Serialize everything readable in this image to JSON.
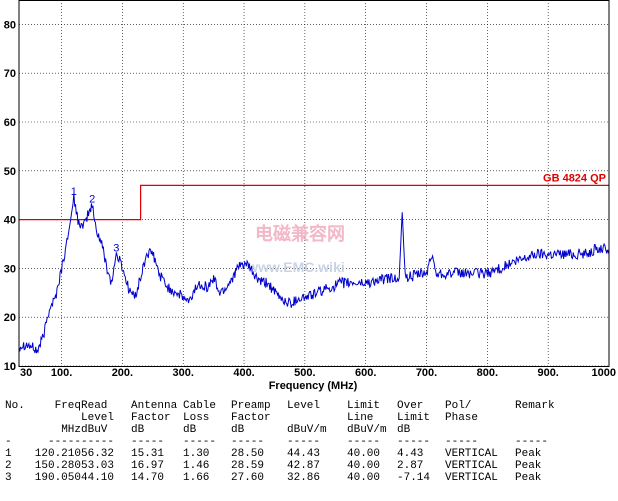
{
  "chart_data": {
    "type": "line",
    "title": "",
    "xlabel": "Frequency (MHz)",
    "ylabel": "",
    "xlim": [
      30,
      1000
    ],
    "ylim": [
      10,
      85
    ],
    "x_ticks": [
      30,
      100,
      200,
      300,
      400,
      500,
      600,
      700,
      800,
      900,
      1000
    ],
    "x_tick_labels": [
      "30",
      "100.",
      "200.",
      "300.",
      "400.",
      "500.",
      "600.",
      "700.",
      "800.",
      "900.",
      "1000"
    ],
    "y_ticks": [
      10,
      20,
      30,
      40,
      50,
      60,
      70,
      80
    ],
    "y_tick_labels": [
      "10",
      "20",
      "30",
      "40",
      "50",
      "60",
      "70",
      "80"
    ],
    "y_bottom_label": "0",
    "grid": true,
    "series": [
      {
        "color": "#0000cc",
        "points": [
          [
            30,
            14
          ],
          [
            40,
            14.5
          ],
          [
            50,
            14
          ],
          [
            60,
            13
          ],
          [
            70,
            16
          ],
          [
            80,
            22
          ],
          [
            90,
            24
          ],
          [
            100,
            30
          ],
          [
            110,
            36
          ],
          [
            120.21,
            44.43
          ],
          [
            127,
            40
          ],
          [
            135,
            38
          ],
          [
            143,
            41
          ],
          [
            150.28,
            42.87
          ],
          [
            157,
            38
          ],
          [
            166,
            35
          ],
          [
            175,
            30
          ],
          [
            182,
            27
          ],
          [
            190.05,
            32.86
          ],
          [
            198,
            31
          ],
          [
            210,
            26
          ],
          [
            220,
            24
          ],
          [
            230,
            28
          ],
          [
            240,
            33
          ],
          [
            250,
            33
          ],
          [
            260,
            29
          ],
          [
            275,
            26
          ],
          [
            290,
            25
          ],
          [
            300,
            24
          ],
          [
            310,
            23
          ],
          [
            320,
            26
          ],
          [
            330,
            27
          ],
          [
            340,
            26
          ],
          [
            350,
            28
          ],
          [
            360,
            25
          ],
          [
            370,
            26
          ],
          [
            380,
            28
          ],
          [
            390,
            30
          ],
          [
            400,
            31
          ],
          [
            410,
            30
          ],
          [
            420,
            28
          ],
          [
            430,
            27
          ],
          [
            440,
            27
          ],
          [
            450,
            25
          ],
          [
            460,
            24
          ],
          [
            470,
            23
          ],
          [
            480,
            23
          ],
          [
            490,
            24
          ],
          [
            500,
            24
          ],
          [
            520,
            25
          ],
          [
            540,
            26
          ],
          [
            560,
            27
          ],
          [
            580,
            27
          ],
          [
            600,
            27
          ],
          [
            620,
            27.5
          ],
          [
            640,
            28
          ],
          [
            655,
            28
          ],
          [
            660,
            41.5
          ],
          [
            665,
            28
          ],
          [
            680,
            28.5
          ],
          [
            700,
            29
          ],
          [
            710,
            33
          ],
          [
            715,
            29
          ],
          [
            730,
            29
          ],
          [
            760,
            29
          ],
          [
            780,
            29
          ],
          [
            800,
            29
          ],
          [
            820,
            30
          ],
          [
            840,
            31
          ],
          [
            860,
            32
          ],
          [
            880,
            33
          ],
          [
            900,
            33
          ],
          [
            920,
            33
          ],
          [
            940,
            33
          ],
          [
            960,
            33
          ],
          [
            980,
            34
          ],
          [
            1000,
            34
          ]
        ]
      }
    ],
    "limit_line": {
      "name": "GB 4824 QP",
      "color": "#e00000",
      "segments": [
        [
          [
            30,
            40
          ],
          [
            230,
            40
          ]
        ],
        [
          [
            230,
            47
          ],
          [
            1000,
            47
          ]
        ]
      ]
    },
    "markers": [
      {
        "label": "1",
        "x": 120.21,
        "y": 44.43
      },
      {
        "label": "2",
        "x": 150.28,
        "y": 42.87
      },
      {
        "label": "3",
        "x": 190.05,
        "y": 32.86
      }
    ]
  },
  "watermark": {
    "text_cn": "电磁兼容网",
    "text_en": "www.EMC.wiki"
  },
  "table": {
    "header_rows": [
      [
        "No.",
        "Freq",
        "Read",
        "Antenna",
        "Cable",
        "Preamp",
        "Level",
        "Limit",
        "Over",
        "Pol/",
        "Remark"
      ],
      [
        "",
        "",
        "Level",
        "Factor",
        "Loss",
        "Factor",
        "",
        "Line",
        "Limit",
        "Phase",
        ""
      ],
      [
        "",
        "MHz",
        "dBuV",
        "dB",
        "dB",
        "dB",
        "dBuV/m",
        "dBuV/m",
        "dB",
        "",
        ""
      ],
      [
        "-",
        "-----",
        "-----",
        "-----",
        "-----",
        "-----",
        "-----",
        "-----",
        "-----",
        "-----",
        "-----"
      ]
    ],
    "rows": [
      [
        "1",
        "120.210",
        "56.32",
        "15.31",
        "1.30",
        "28.50",
        "44.43",
        "40.00",
        "4.43",
        "VERTICAL",
        "Peak"
      ],
      [
        "2",
        "150.280",
        "53.03",
        "16.97",
        "1.46",
        "28.59",
        "42.87",
        "40.00",
        "2.87",
        "VERTICAL",
        "Peak"
      ],
      [
        "3",
        "190.050",
        "44.10",
        "14.70",
        "1.66",
        "27.60",
        "32.86",
        "40.00",
        "-7.14",
        "VERTICAL",
        "Peak"
      ]
    ]
  }
}
